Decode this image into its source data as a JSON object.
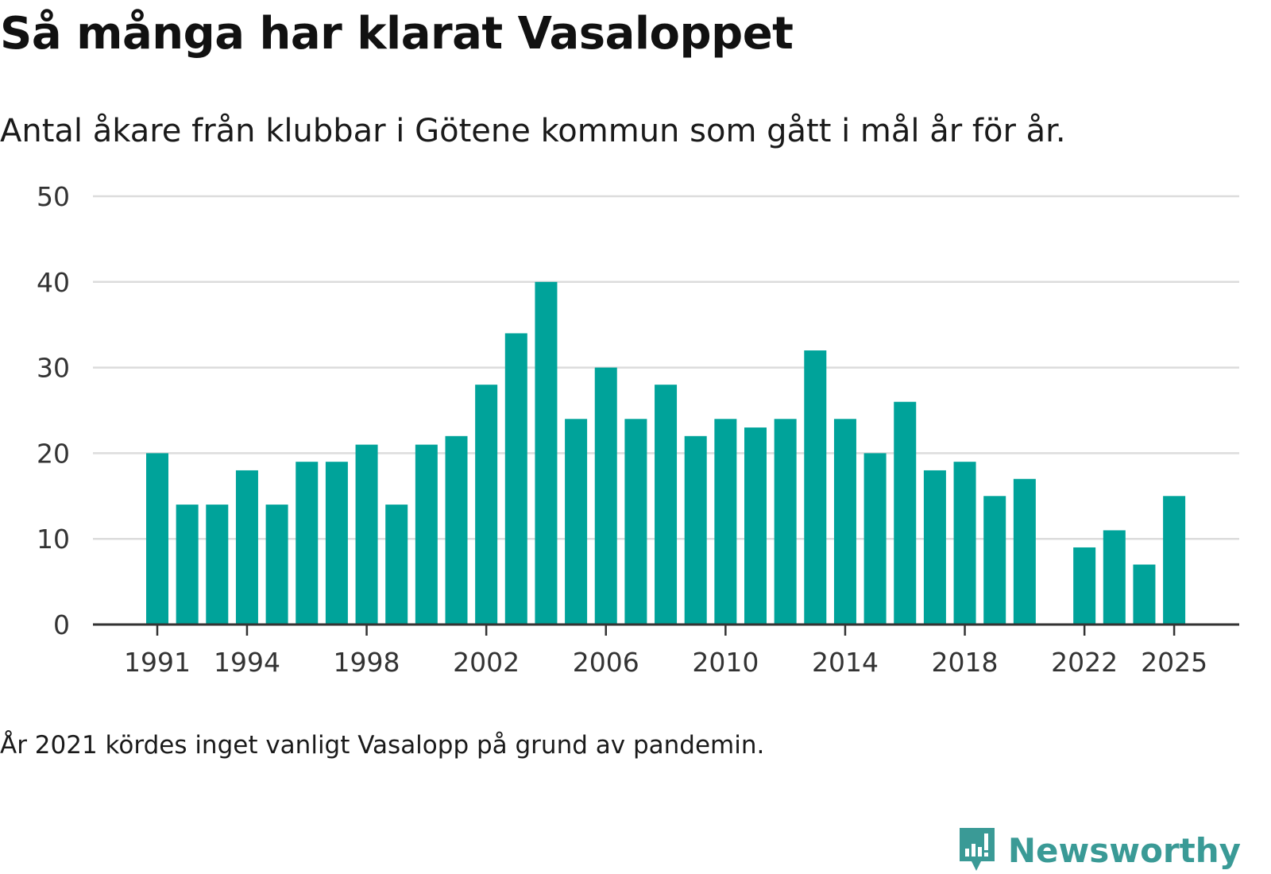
{
  "chart_data": {
    "type": "bar",
    "title": "Så många har klarat Vasaloppet",
    "subtitle": "Antal åkare från klubbar i Götene kommun som gått i mål år för år.",
    "note": "År 2021 kördes inget vanligt Vasalopp på grund av pandemin.",
    "xlabel": "",
    "ylabel": "",
    "ylim": [
      0,
      50
    ],
    "yticks": [
      0,
      10,
      20,
      30,
      40,
      50
    ],
    "xticks": [
      "1991",
      "1994",
      "1998",
      "2002",
      "2006",
      "2010",
      "2014",
      "2018",
      "2022",
      "2025"
    ],
    "grid": true,
    "bar_color": "#00a39a",
    "categories": [
      1991,
      1992,
      1993,
      1994,
      1995,
      1996,
      1997,
      1998,
      1999,
      2000,
      2001,
      2002,
      2003,
      2004,
      2005,
      2006,
      2007,
      2008,
      2009,
      2010,
      2011,
      2012,
      2013,
      2014,
      2015,
      2016,
      2017,
      2018,
      2019,
      2020,
      2021,
      2022,
      2023,
      2024,
      2025
    ],
    "values": [
      20,
      14,
      14,
      18,
      14,
      19,
      19,
      21,
      14,
      21,
      22,
      28,
      34,
      40,
      24,
      30,
      24,
      28,
      22,
      24,
      23,
      24,
      32,
      24,
      20,
      26,
      18,
      19,
      15,
      17,
      null,
      9,
      11,
      7,
      15
    ]
  },
  "brand": {
    "name": "Newsworthy",
    "icon": "newsworthy-logo-icon",
    "color": "#3a9a96"
  }
}
